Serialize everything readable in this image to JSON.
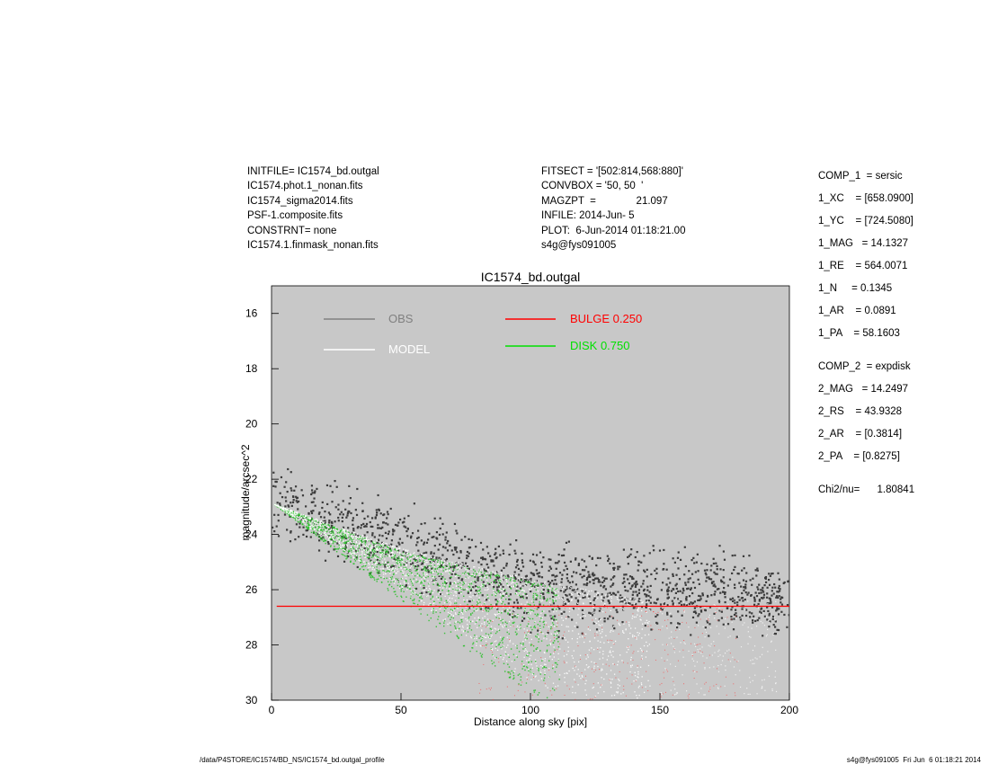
{
  "header_left": [
    "INITFILE= IC1574_bd.outgal",
    "IC1574.phot.1_nonan.fits",
    "IC1574_sigma2014.fits",
    "PSF-1.composite.fits",
    "CONSTRNT= none",
    "IC1574.1.finmask_nonan.fits"
  ],
  "header_mid": [
    "FITSECT = '[502:814,568:880]'",
    "CONVBOX = '50, 50  '",
    "MAGZPT  =              21.097",
    "INFILE: 2014-Jun- 5",
    "PLOT:  6-Jun-2014 01:18:21.00",
    "s4g@fys091005"
  ],
  "params": [
    "COMP_1  = sersic",
    "1_XC    = [658.0900]",
    "1_YC    = [724.5080]",
    "1_MAG   = 14.1327",
    "1_RE    = 564.0071",
    "1_N     = 0.1345",
    "1_AR    = 0.0891",
    "1_PA    = 58.1603",
    "COMP_2  = expdisk",
    "2_MAG   = 14.2497",
    "2_RS    = 43.9328",
    "2_AR    = [0.3814]",
    "2_PA    = [0.8275]",
    "Chi2/nu=      1.80841"
  ],
  "footer_left": "/data/P4STORE/IC1574/BD_NS/IC1574_bd.outgal_profile",
  "footer_right": "s4g@fys091005  Fri Jun  6 01:18:21 2014",
  "chart_data": {
    "type": "scatter",
    "title": "IC1574_bd.outgal",
    "xlabel": "Distance along sky [pix]",
    "ylabel": "magnitude/arcsec^2",
    "xlim": [
      0,
      200
    ],
    "ylim": [
      30,
      15
    ],
    "y_reversed": true,
    "x_ticks": [
      0,
      50,
      100,
      150,
      200
    ],
    "y_ticks": [
      16,
      18,
      20,
      22,
      24,
      26,
      28,
      30
    ],
    "background": "#c8c8c8",
    "legend": [
      {
        "label": "OBS",
        "color": "#808080"
      },
      {
        "label": "MODEL",
        "color": "#ffffff"
      },
      {
        "label": "BULGE  0.250",
        "color": "#ff0000"
      },
      {
        "label": "DISK  0.750",
        "color": "#00e000"
      }
    ],
    "series": [
      {
        "name": "OBS",
        "color": "#3c3c3c",
        "points": [
          [
            0,
            22.9
          ],
          [
            5,
            23.0
          ],
          [
            10,
            23.1
          ],
          [
            15,
            23.2
          ],
          [
            20,
            23.4
          ],
          [
            25,
            23.6
          ],
          [
            30,
            23.7
          ],
          [
            35,
            23.9
          ],
          [
            40,
            24.0
          ],
          [
            45,
            24.2
          ],
          [
            50,
            24.3
          ],
          [
            55,
            24.5
          ],
          [
            60,
            24.6
          ],
          [
            65,
            24.8
          ],
          [
            70,
            24.9
          ],
          [
            75,
            25.1
          ],
          [
            80,
            25.2
          ],
          [
            85,
            25.4
          ],
          [
            90,
            25.6
          ],
          [
            95,
            25.7
          ],
          [
            100,
            25.8
          ],
          [
            105,
            25.9
          ],
          [
            110,
            26.0
          ],
          [
            115,
            26.0
          ],
          [
            120,
            26.0
          ],
          [
            125,
            25.9
          ],
          [
            130,
            25.9
          ],
          [
            135,
            25.9
          ],
          [
            140,
            25.9
          ],
          [
            145,
            25.9
          ],
          [
            150,
            26.0
          ],
          [
            155,
            26.0
          ],
          [
            160,
            26.1
          ],
          [
            165,
            26.1
          ],
          [
            170,
            26.1
          ],
          [
            175,
            26.2
          ],
          [
            180,
            26.2
          ],
          [
            185,
            26.3
          ],
          [
            190,
            26.3
          ],
          [
            195,
            26.3
          ],
          [
            200,
            26.4
          ]
        ],
        "scatter_width": 1.5
      },
      {
        "name": "MODEL",
        "color": "#ffffff",
        "upper": [
          [
            1,
            22.9
          ],
          [
            50,
            24.5
          ],
          [
            100,
            25.6
          ],
          [
            150,
            26.5
          ]
        ],
        "lower": [
          [
            1,
            22.9
          ],
          [
            50,
            26.0
          ],
          [
            100,
            29.5
          ],
          [
            145,
            30.2
          ]
        ]
      },
      {
        "name": "DISK  0.750",
        "color": "#22c022",
        "upper": [
          [
            1,
            22.9
          ],
          [
            50,
            24.6
          ],
          [
            100,
            25.7
          ],
          [
            150,
            26.6
          ]
        ],
        "lower": [
          [
            1,
            22.9
          ],
          [
            50,
            26.4
          ],
          [
            80,
            28.5
          ],
          [
            110,
            30.3
          ]
        ]
      },
      {
        "name": "BULGE  0.250",
        "color": "#ff0000",
        "line": [
          [
            2,
            26.6
          ],
          [
            200,
            26.6
          ]
        ]
      }
    ]
  }
}
